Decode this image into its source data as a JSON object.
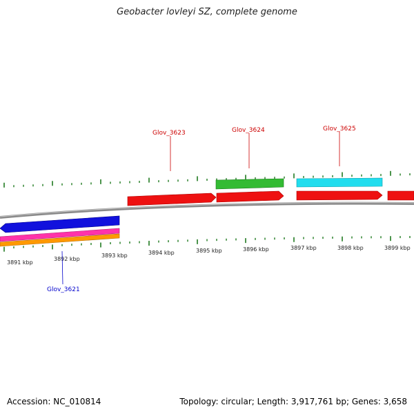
{
  "title": "Geobacter lovleyi SZ, complete genome",
  "footer": {
    "accession": "Accession: NC_010814",
    "summary": "Topology: circular; Length: 3,917,761 bp; Genes: 3,658"
  },
  "colors": {
    "backbone": "#8a8a8a",
    "tick": "#1f7a1f",
    "forward_gene": "#ee1111",
    "label_forward": "#cc0000",
    "label_reverse": "#0000cc"
  },
  "scale": {
    "ticks": [
      {
        "label": "3891 kbp"
      },
      {
        "label": "3892 kbp"
      },
      {
        "label": "3893 kbp"
      },
      {
        "label": "3894 kbp"
      },
      {
        "label": "3895 kbp"
      },
      {
        "label": "3896 kbp"
      },
      {
        "label": "3897 kbp"
      },
      {
        "label": "3898 kbp"
      },
      {
        "label": "3899 kbp"
      }
    ]
  },
  "genes": [
    {
      "id": "Glov_3621",
      "label": "Glov_3621",
      "strand": "reverse",
      "color": "#1111dd",
      "track": "outer-reverse"
    },
    {
      "id": "Glov_3623",
      "label": "Glov_3623",
      "strand": "forward",
      "color": "#ee1111",
      "track": "forward"
    },
    {
      "id": "Glov_3624",
      "label": "Glov_3624",
      "strand": "forward",
      "color": "#ee1111",
      "track": "forward"
    },
    {
      "id": "Glov_3625",
      "label": "Glov_3625",
      "strand": "forward",
      "color": "#ee1111",
      "track": "forward"
    }
  ],
  "annotation_bars": [
    {
      "color": "#ff33aa"
    },
    {
      "color": "#ff9900"
    },
    {
      "color": "#33bb33"
    },
    {
      "color": "#22ddee"
    }
  ]
}
